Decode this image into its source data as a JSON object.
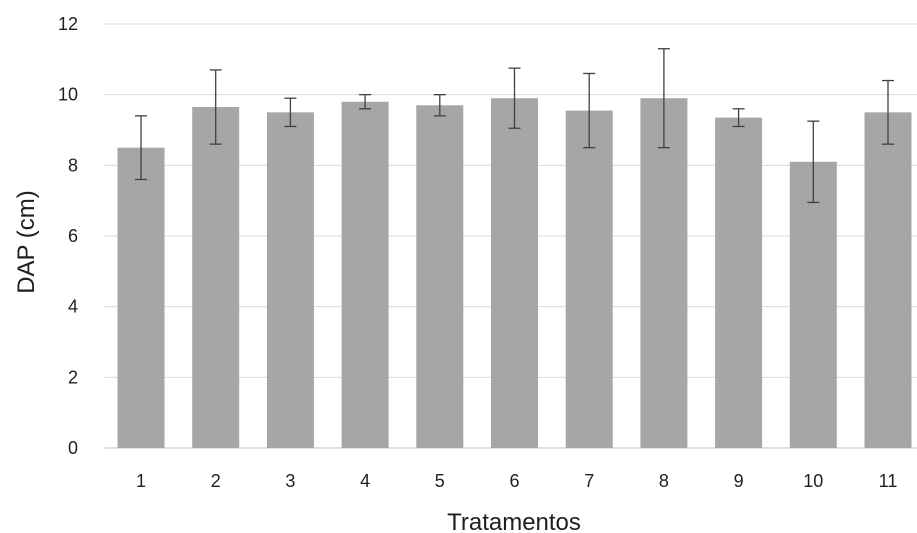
{
  "chart_data": {
    "type": "bar",
    "title": "",
    "xlabel": "Tratamentos",
    "ylabel": "DAP (cm)",
    "categories": [
      "1",
      "2",
      "3",
      "4",
      "5",
      "6",
      "7",
      "8",
      "9",
      "10",
      "11"
    ],
    "values": [
      8.5,
      9.65,
      9.5,
      9.8,
      9.7,
      9.9,
      9.55,
      9.9,
      9.35,
      8.1,
      9.5
    ],
    "error_bars": [
      0.9,
      1.05,
      0.4,
      0.2,
      0.3,
      0.85,
      1.05,
      1.4,
      0.25,
      1.15,
      0.9
    ],
    "ylim": [
      0,
      12
    ],
    "yticks": [
      0,
      2,
      4,
      6,
      8,
      10,
      12
    ],
    "grid": true,
    "colors": {
      "bar": "#a6a6a6",
      "error_bar": "#404040",
      "grid": "#d9d9d9",
      "axis": "#bfbfbf"
    }
  }
}
